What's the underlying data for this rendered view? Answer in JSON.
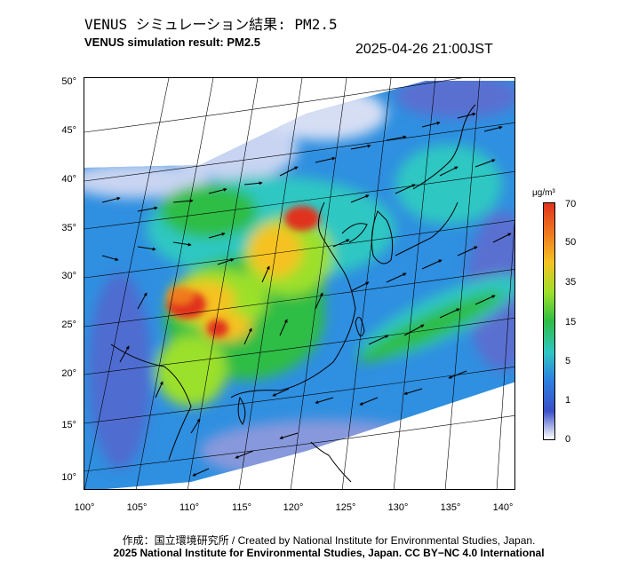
{
  "header": {
    "title_jp": "VENUS シミュレーション結果: PM2.5",
    "title_en": "VENUS simulation result: PM2.5",
    "timestamp": "2025-04-26 21:00JST"
  },
  "map": {
    "latitude_ticks": [
      "50°",
      "45°",
      "40°",
      "35°",
      "30°",
      "25°",
      "20°",
      "15°",
      "10°"
    ],
    "longitude_ticks": [
      "100°",
      "105°",
      "110°",
      "115°",
      "120°",
      "125°",
      "130°",
      "135°",
      "140°"
    ],
    "hotspots": [
      {
        "region": "Sichuan Basin",
        "level": "high"
      },
      {
        "region": "North China Plain (Shandong)",
        "level": "high"
      },
      {
        "region": "Guangxi",
        "level": "high"
      }
    ]
  },
  "colorbar": {
    "unit": "μg/m³",
    "labels": [
      "70",
      "50",
      "35",
      "15",
      "5",
      "1",
      "0"
    ],
    "colors": [
      "#e0331c",
      "#f07a1e",
      "#f5c221",
      "#9be02a",
      "#2ebd45",
      "#2ec7c2",
      "#2d7fe0",
      "#3a4fc8",
      "#ffffff"
    ]
  },
  "footer": {
    "line1": "作成：国立環境研究所 / Created by National Institute for Environmental Studies, Japan.",
    "line2": "2025 National Institute for Environmental Studies, Japan. CC BY−NC 4.0 International"
  }
}
